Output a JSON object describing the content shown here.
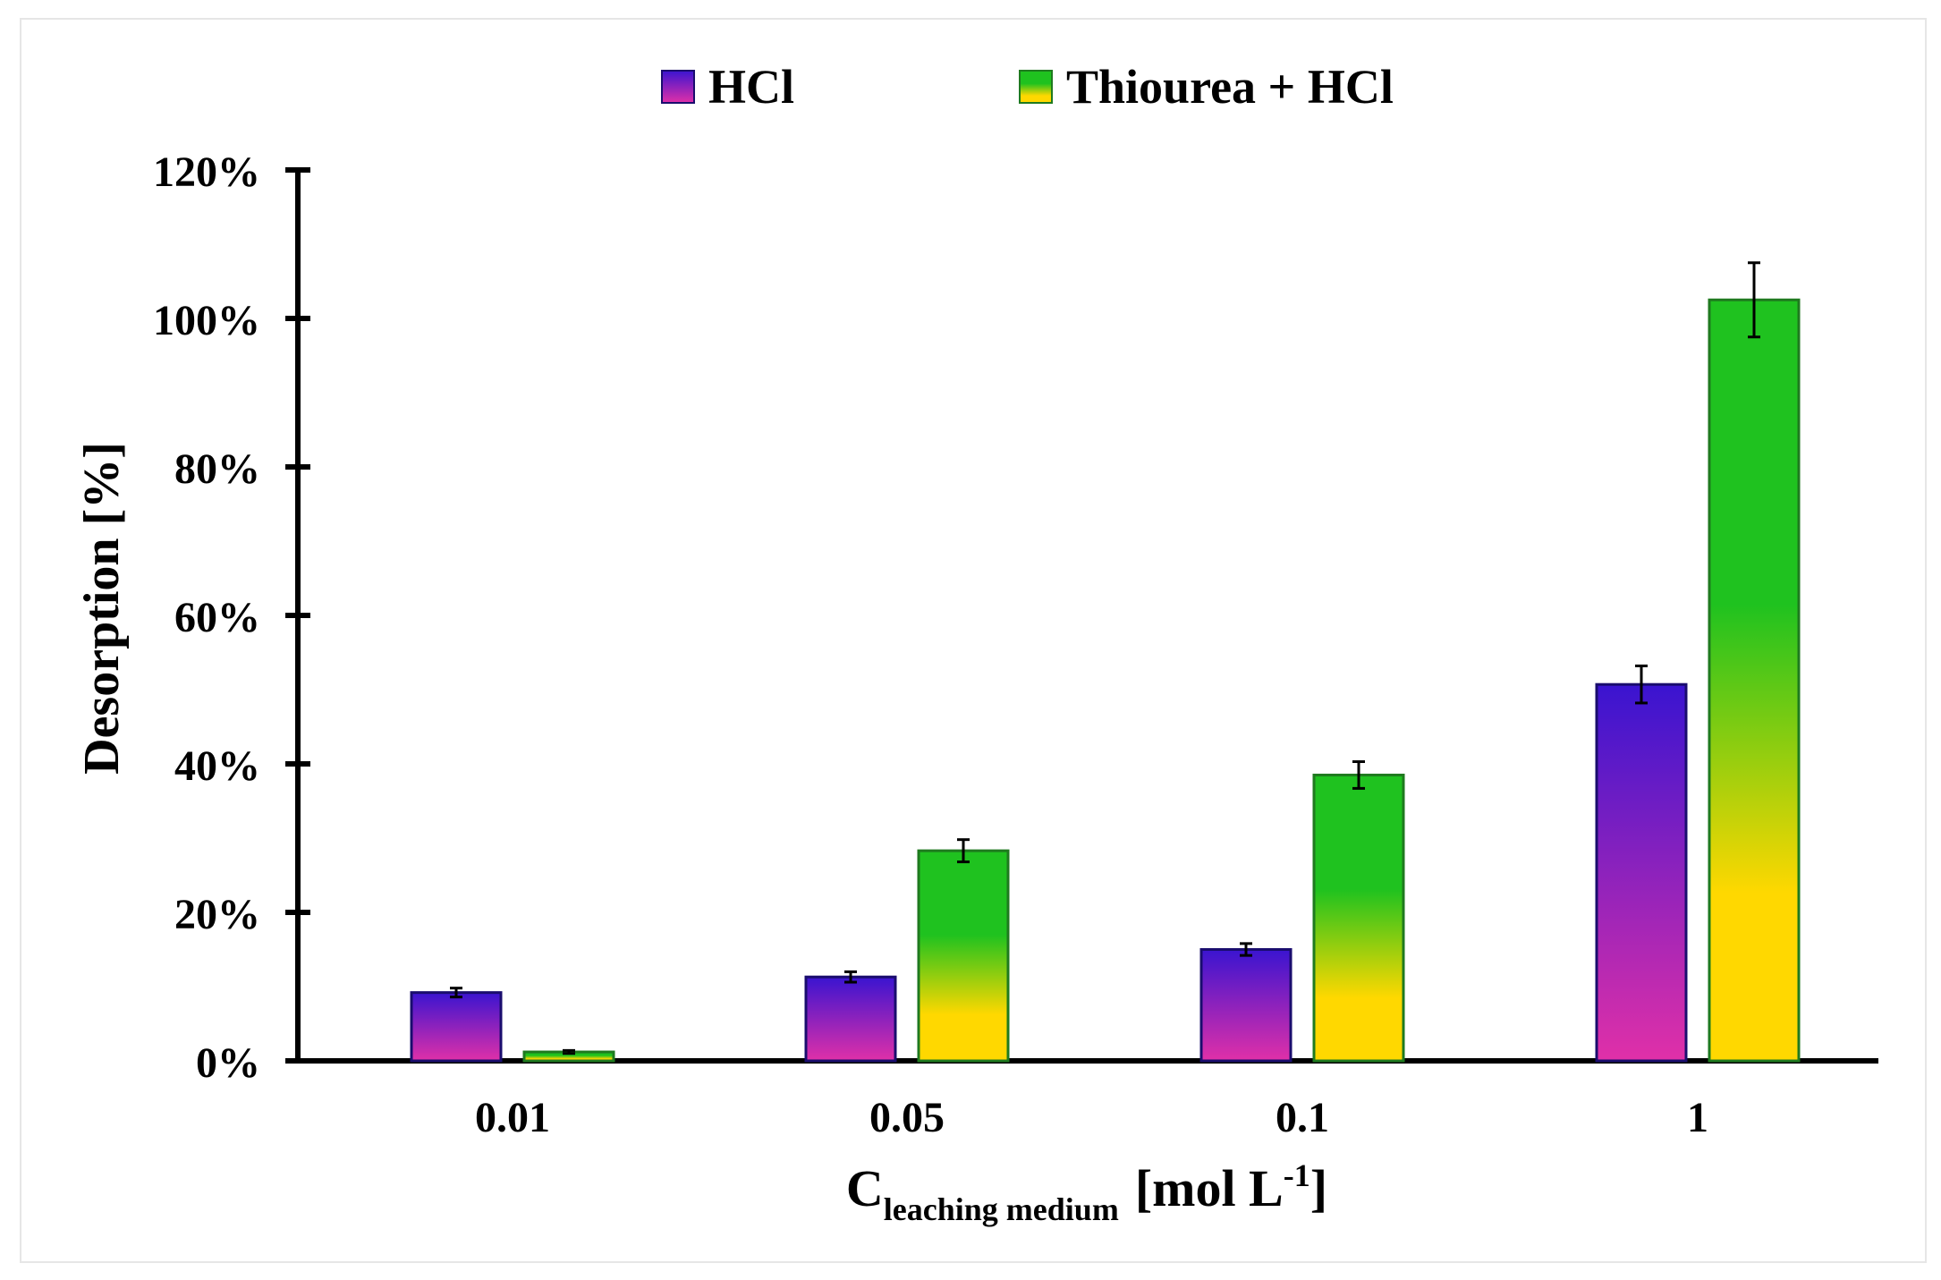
{
  "chart_data": {
    "type": "bar",
    "title": "",
    "categories": [
      "0.01",
      "0.05",
      "0.1",
      "1"
    ],
    "series": [
      {
        "name": "HCl",
        "values": [
          9.2,
          11.3,
          15.0,
          50.7
        ],
        "errors": [
          0.6,
          0.7,
          0.8,
          2.5
        ],
        "gradient_top": "#3a14d0",
        "gradient_bottom": "#e030a8",
        "stroke": "#1a0d6e"
      },
      {
        "name": "Thiourea + HCl",
        "values": [
          1.2,
          28.3,
          38.5,
          102.5
        ],
        "errors": [
          0.2,
          1.5,
          1.8,
          5.0
        ],
        "gradient_top": "#1fc21f",
        "gradient_bottom": "#ffd800",
        "stroke": "#1f7a1f"
      }
    ],
    "ylim": [
      0,
      120
    ],
    "yticks": [
      0,
      20,
      40,
      60,
      80,
      100,
      120
    ],
    "ytick_labels": [
      "0%",
      "20%",
      "40%",
      "60%",
      "80%",
      "100%",
      "120%"
    ],
    "ylabel": "Desorption [%]",
    "xlabel": {
      "main": "C",
      "subscript": "leaching medium",
      "unit_open": "[mol L",
      "superscript": "-1",
      "unit_close": "]"
    },
    "legend_position": "top-center"
  }
}
